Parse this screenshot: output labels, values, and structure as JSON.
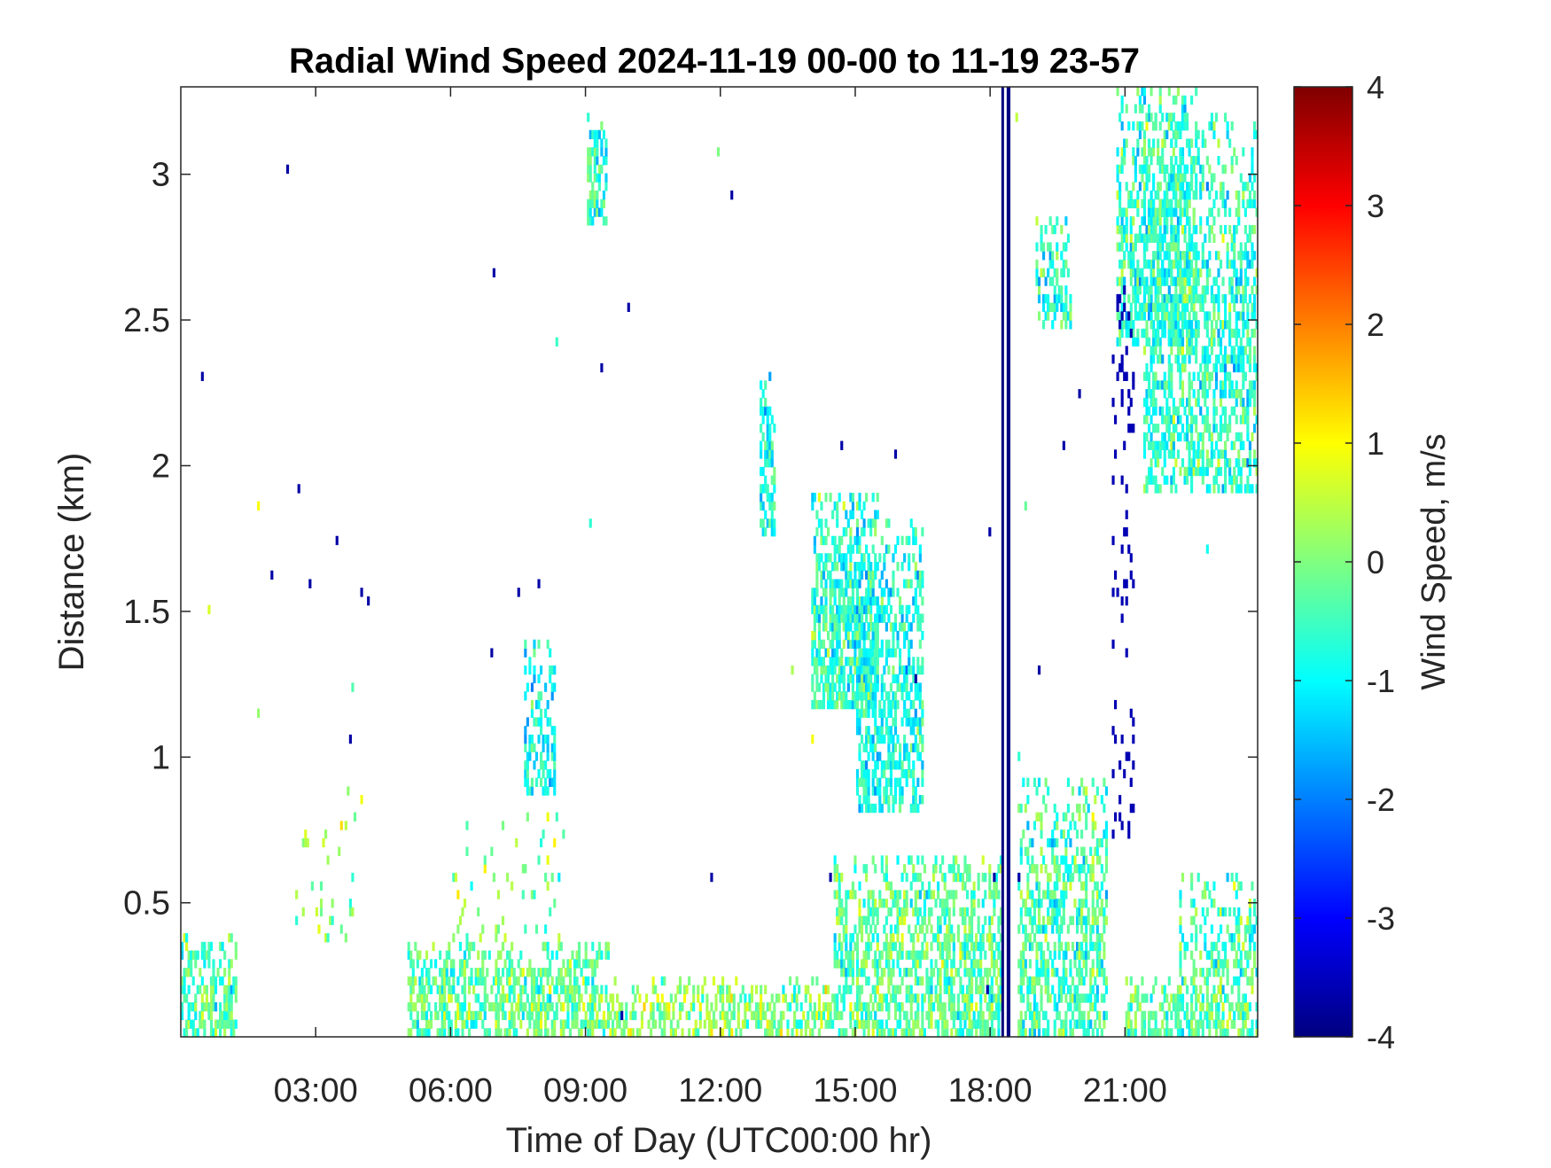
{
  "chart_data": {
    "type": "heatmap",
    "title": "Radial Wind Speed 2024-11-19 00-00 to 11-19 23-57",
    "xlabel": "Time of Day (UTC00:00 hr)",
    "ylabel": "Distance (km)",
    "xlim": [
      0,
      23.95
    ],
    "ylim": [
      0.04,
      3.3
    ],
    "x_ticks": [
      {
        "value": 3,
        "label": "03:00"
      },
      {
        "value": 6,
        "label": "06:00"
      },
      {
        "value": 9,
        "label": "09:00"
      },
      {
        "value": 12,
        "label": "12:00"
      },
      {
        "value": 15,
        "label": "15:00"
      },
      {
        "value": 18,
        "label": "18:00"
      },
      {
        "value": 21,
        "label": "21:00"
      }
    ],
    "y_ticks": [
      {
        "value": 0.5,
        "label": "0.5"
      },
      {
        "value": 1,
        "label": "1"
      },
      {
        "value": 1.5,
        "label": "1.5"
      },
      {
        "value": 2,
        "label": "2"
      },
      {
        "value": 2.5,
        "label": "2.5"
      },
      {
        "value": 3,
        "label": "3"
      }
    ],
    "colorbar": {
      "label": "Wind Speed, m/s",
      "colormap": "jet",
      "range": [
        -4,
        4
      ],
      "ticks": [
        {
          "value": 4,
          "label": "4"
        },
        {
          "value": 3,
          "label": "3"
        },
        {
          "value": 2,
          "label": "2"
        },
        {
          "value": 1,
          "label": "1"
        },
        {
          "value": 0,
          "label": "0"
        },
        {
          "value": -1,
          "label": "-1"
        },
        {
          "value": -2,
          "label": "-2"
        },
        {
          "value": -3,
          "label": "-3"
        },
        {
          "value": -4,
          "label": "-4"
        }
      ]
    },
    "grid": false,
    "regions": [
      {
        "t0": 0.0,
        "t1": 1.2,
        "d0": 0.04,
        "d1": 0.38,
        "v": -0.3,
        "density": 0.55
      },
      {
        "t0": 5.0,
        "t1": 9.5,
        "d0": 0.04,
        "d1": 0.35,
        "v": -0.2,
        "density": 0.6
      },
      {
        "t0": 9.5,
        "t1": 14.5,
        "d0": 0.04,
        "d1": 0.22,
        "v": 0.1,
        "density": 0.45
      },
      {
        "t0": 14.5,
        "t1": 18.3,
        "d0": 0.04,
        "d1": 0.65,
        "v": -0.3,
        "density": 0.6
      },
      {
        "t0": 18.6,
        "t1": 20.6,
        "d0": 0.04,
        "d1": 0.9,
        "v": -0.4,
        "density": 0.55
      },
      {
        "t0": 21.0,
        "t1": 23.95,
        "d0": 0.04,
        "d1": 0.22,
        "v": -0.3,
        "density": 0.6
      },
      {
        "t0": 22.2,
        "t1": 23.95,
        "d0": 0.22,
        "d1": 0.6,
        "v": -0.4,
        "density": 0.35
      },
      {
        "t0": 9.0,
        "t1": 9.45,
        "d0": 2.8,
        "d1": 3.2,
        "v": -0.7,
        "density": 0.7
      },
      {
        "t0": 7.6,
        "t1": 8.3,
        "d0": 0.85,
        "d1": 1.4,
        "v": -0.9,
        "density": 0.45
      },
      {
        "t0": 12.85,
        "t1": 13.2,
        "d0": 1.75,
        "d1": 2.3,
        "v": -0.8,
        "density": 0.6
      },
      {
        "t0": 14.0,
        "t1": 15.5,
        "d0": 1.15,
        "d1": 1.9,
        "v": -0.6,
        "density": 0.7
      },
      {
        "t0": 15.0,
        "t1": 16.5,
        "d0": 0.8,
        "d1": 1.8,
        "v": -0.8,
        "density": 0.55
      },
      {
        "t0": 19.0,
        "t1": 19.8,
        "d0": 2.45,
        "d1": 2.85,
        "v": -0.6,
        "density": 0.45
      },
      {
        "t0": 20.8,
        "t1": 22.6,
        "d0": 2.4,
        "d1": 3.3,
        "v": -0.6,
        "density": 0.55
      },
      {
        "t0": 21.4,
        "t1": 23.95,
        "d0": 1.9,
        "d1": 3.2,
        "v": -0.6,
        "density": 0.5
      },
      {
        "t0": 2.5,
        "t1": 4.0,
        "d0": 0.35,
        "d1": 0.95,
        "v": 0.0,
        "density": 0.06
      },
      {
        "t0": 6.0,
        "t1": 8.5,
        "d0": 0.35,
        "d1": 0.8,
        "v": 0.0,
        "density": 0.08
      }
    ],
    "vertical_band": {
      "t0": 18.25,
      "t1": 18.45,
      "d0": 0.04,
      "d1": 3.3,
      "v": -4
    },
    "dark_speckle": {
      "t0": 20.7,
      "t1": 21.2,
      "d0": 0.7,
      "d1": 2.6,
      "v": -3.6,
      "density": 0.12
    },
    "scatter_density": 0.0007
  }
}
